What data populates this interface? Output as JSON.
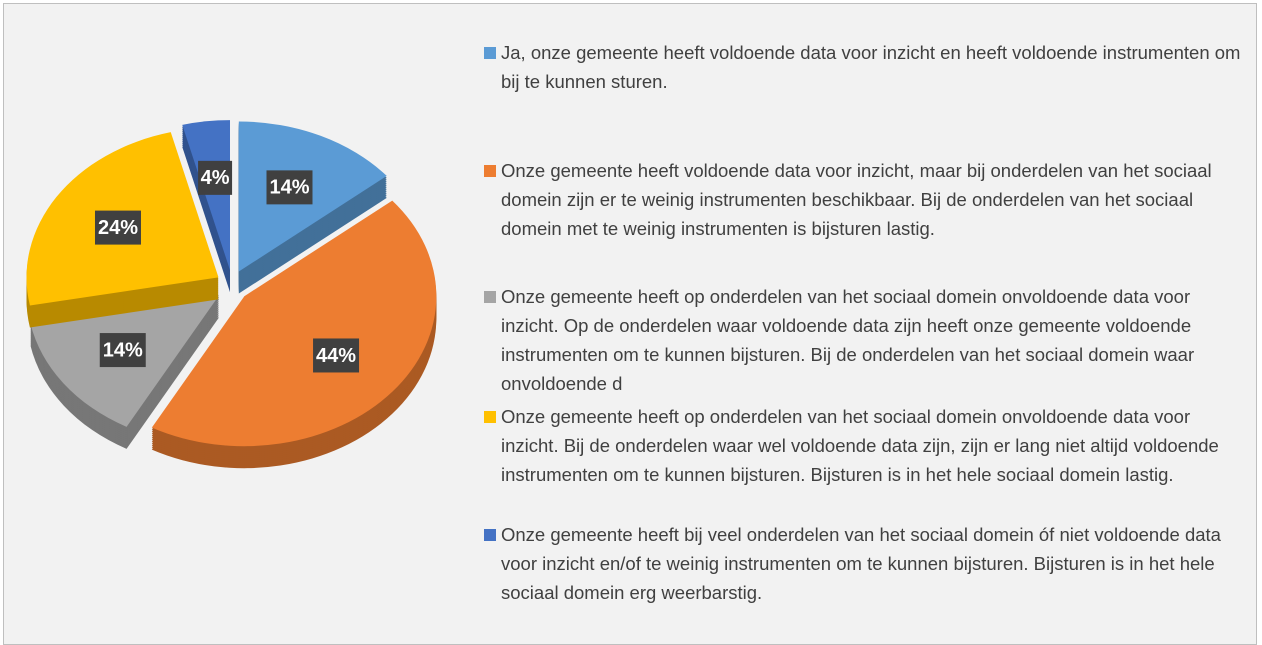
{
  "chart_data": {
    "type": "pie",
    "categories": [
      "Ja, onze gemeente heeft voldoende data voor inzicht en heeft voldoende instrumenten om bij te kunnen sturen.",
      "Onze gemeente heeft voldoende data voor inzicht, maar bij onderdelen van het sociaal domein zijn er te weinig instrumenten beschikbaar. Bij de onderdelen van het sociaal domein met te weinig instrumenten is bijsturen lastig.",
      "Onze gemeente heeft op onderdelen van het sociaal domein onvoldoende data voor inzicht. Op de onderdelen waar voldoende data zijn heeft onze gemeente voldoende instrumenten om te kunnen bijsturen. Bij de onderdelen van het sociaal domein waar onvoldoende d",
      "Onze gemeente heeft op onderdelen van het sociaal domein onvoldoende data voor inzicht. Bij de onderdelen waar wel voldoende data zijn, zijn er lang niet altijd voldoende instrumenten om te kunnen bijsturen. Bijsturen is in het hele sociaal domein lastig.",
      "Onze gemeente heeft bij veel onderdelen van het sociaal domein óf niet voldoende data voor inzicht en/of te weinig instrumenten om te kunnen bijsturen. Bijsturen is in het hele sociaal domein erg weerbarstig."
    ],
    "values": [
      14,
      44,
      14,
      24,
      4
    ],
    "value_labels": [
      "14%",
      "44%",
      "14%",
      "24%",
      "4%"
    ],
    "colors": [
      "#5b9bd5",
      "#ed7d31",
      "#a5a5a5",
      "#ffc000",
      "#4472c4"
    ]
  }
}
